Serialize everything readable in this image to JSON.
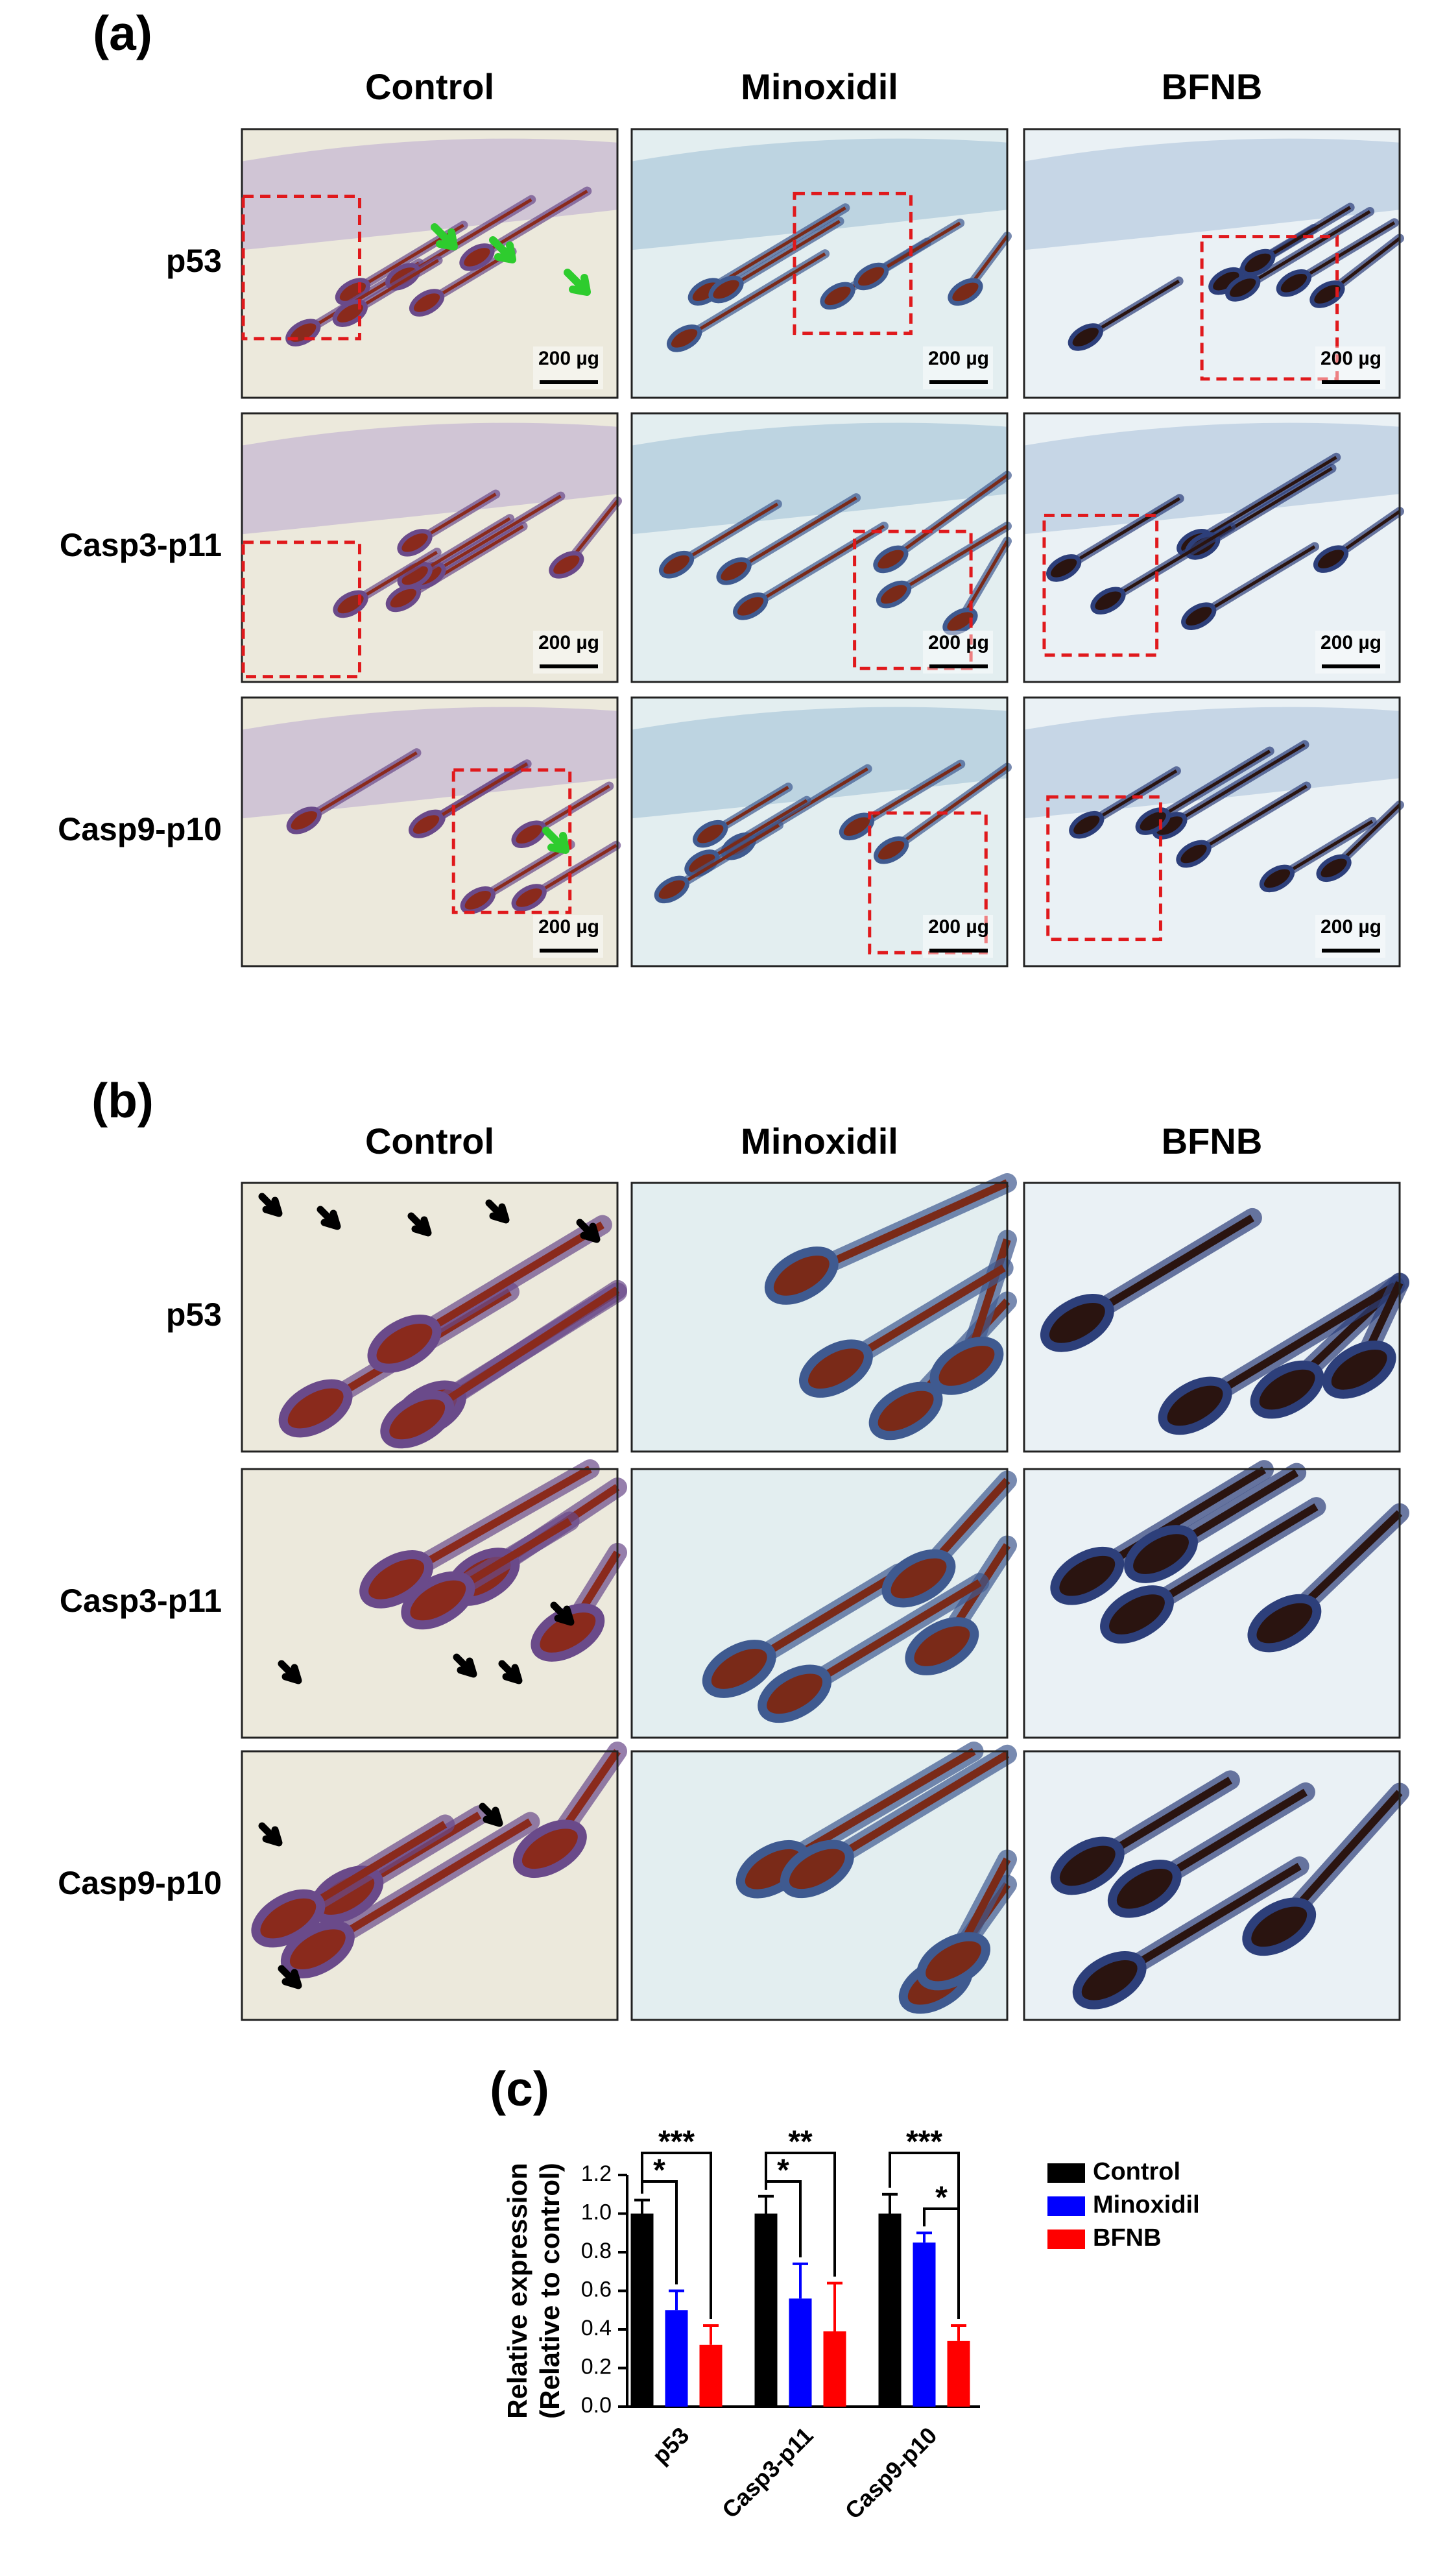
{
  "panel_a": {
    "label": "(a)",
    "columns": [
      "Control",
      "Minoxidil",
      "BFNB"
    ],
    "rows": [
      "p53",
      "Casp3-p11",
      "Casp9-p10"
    ],
    "scale_bars": [
      [
        "200 µg",
        "200 µg",
        "200 µg"
      ],
      [
        "200 µg",
        "200 µg",
        "200 µg"
      ],
      [
        "200 µg",
        "200 µg",
        "200 µg"
      ]
    ]
  },
  "panel_b": {
    "label": "(b)",
    "columns": [
      "Control",
      "Minoxidil",
      "BFNB"
    ],
    "rows": [
      "p53",
      "Casp3-p11",
      "Casp9-p10"
    ]
  },
  "panel_c": {
    "label": "(c)"
  },
  "chart_data": {
    "type": "bar",
    "ylabel": [
      "Relative expression",
      "(Relative to control)"
    ],
    "categories": [
      "p53",
      "Casp3-p11",
      "Casp9-p10"
    ],
    "series": [
      {
        "name": "Control",
        "color": "#000000",
        "values": [
          1.0,
          1.0,
          1.0
        ],
        "errors": [
          0.07,
          0.09,
          0.1
        ]
      },
      {
        "name": "Minoxidil",
        "color": "#0000ff",
        "values": [
          0.5,
          0.56,
          0.85
        ],
        "errors": [
          0.1,
          0.18,
          0.05
        ]
      },
      {
        "name": "BFNB",
        "color": "#ff0000",
        "values": [
          0.32,
          0.39,
          0.34
        ],
        "errors": [
          0.1,
          0.25,
          0.08
        ]
      }
    ],
    "ylim": [
      0,
      1.2
    ],
    "yticks": [
      {
        "value": 0,
        "label": "0.0"
      },
      0.2,
      0.4,
      0.6,
      0.8,
      {
        "value": 1,
        "label": "1.0"
      },
      1.2
    ],
    "legend": "right",
    "significance": [
      {
        "category": 0,
        "pair": [
          0,
          1
        ],
        "text": "*"
      },
      {
        "category": 0,
        "pair": [
          0,
          2
        ],
        "text": "***"
      },
      {
        "category": 1,
        "pair": [
          0,
          1
        ],
        "text": "*"
      },
      {
        "category": 1,
        "pair": [
          0,
          2
        ],
        "text": "**"
      },
      {
        "category": 2,
        "pair": [
          0,
          2
        ],
        "text": "***"
      },
      {
        "category": 2,
        "pair": [
          1,
          2
        ],
        "text": "*"
      }
    ]
  }
}
